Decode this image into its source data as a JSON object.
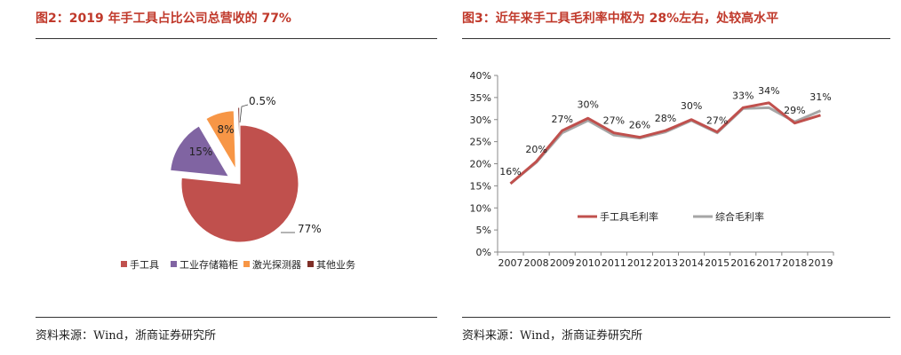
{
  "left": {
    "title": "图2：2019 年手工具占比公司总营收的 77%",
    "source": "资料来源：Wind，浙商证券研究所"
  },
  "right": {
    "title": "图3：近年来手工具毛利率中枢为 28%左右，处较高水平",
    "source": "资料来源：Wind，浙商证券研究所"
  },
  "chart_data": [
    {
      "type": "pie",
      "title": "2019 年手工具占比公司总营收的 77%",
      "categories": [
        "手工具",
        "工业存储箱柜",
        "激光探测器",
        "其他业务"
      ],
      "values": [
        77,
        15,
        8,
        0.5
      ],
      "labels": [
        "77%",
        "15%",
        "8%",
        "0.5%"
      ],
      "colors": [
        "#c0504d",
        "#8064a2",
        "#f79646",
        "#7f2f28"
      ],
      "exploded": true,
      "legend": "bottom"
    },
    {
      "type": "line",
      "title": "近年来手工具毛利率中枢为 28%左右，处较高水平",
      "x": [
        "2007",
        "2008",
        "2009",
        "2010",
        "2011",
        "2012",
        "2013",
        "2014",
        "2015",
        "2016",
        "2017",
        "2018",
        "2019"
      ],
      "series": [
        {
          "name": "手工具毛利率",
          "color": "#c0504d",
          "values": [
            15.5,
            20.5,
            27.5,
            30.3,
            27.0,
            26.0,
            27.5,
            30.0,
            27.2,
            32.7,
            33.8,
            29.2,
            31.0
          ]
        },
        {
          "name": "综合毛利率",
          "color": "#a6a6a6",
          "values": [
            15.5,
            20.3,
            27.0,
            29.8,
            26.5,
            25.8,
            27.2,
            29.8,
            27.0,
            32.5,
            32.7,
            29.5,
            32.0
          ]
        }
      ],
      "data_labels": [
        "16%",
        "20%",
        "27%",
        "30%",
        "27%",
        "26%",
        "28%",
        "30%",
        "27%",
        "33%",
        "34%",
        "29%",
        "31%"
      ],
      "ylim": [
        0,
        40
      ],
      "yticks": [
        "0%",
        "5%",
        "10%",
        "15%",
        "20%",
        "25%",
        "30%",
        "35%",
        "40%"
      ],
      "legend": "center"
    }
  ]
}
